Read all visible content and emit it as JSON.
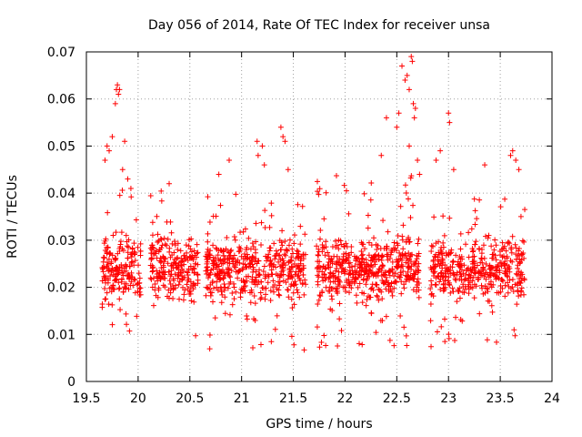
{
  "chart_data": {
    "type": "scatter",
    "title": "Day 056 of 2014, Rate Of TEC Index for receiver unsa",
    "xlabel": "GPS time / hours",
    "ylabel": "ROTI / TECUs",
    "xlim": [
      19.5,
      24
    ],
    "ylim": [
      0,
      0.07
    ],
    "xticks": [
      "19.5",
      "20",
      "20.5",
      "21",
      "21.5",
      "22",
      "22.5",
      "23",
      "23.5",
      "24"
    ],
    "yticks": [
      "0",
      "0.01",
      "0.02",
      "0.03",
      "0.04",
      "0.05",
      "0.06",
      "0.07"
    ],
    "xtick_values": [
      19.5,
      20,
      20.5,
      21,
      21.5,
      22,
      22.5,
      23,
      23.5,
      24
    ],
    "ytick_values": [
      0,
      0.01,
      0.02,
      0.03,
      0.04,
      0.05,
      0.06,
      0.07
    ],
    "grid": true,
    "marker": "plus",
    "color": "#ff0000",
    "series": [
      {
        "name": "ROTI",
        "description": "Dense point cloud, approx. 0.007–0.069 TECU/min; data gaps near 20.05–20.15, 20.55–20.65, 21.65–21.72, 22.75–22.85",
        "clusters": [
          {
            "x": [
              19.65,
              20.03
            ],
            "y": [
              0.01,
              0.042
            ],
            "n": 190
          },
          {
            "x": [
              20.12,
              20.58
            ],
            "y": [
              0.008,
              0.042
            ],
            "n": 230
          },
          {
            "x": [
              20.65,
              21.62
            ],
            "y": [
              0.006,
              0.04
            ],
            "n": 470
          },
          {
            "x": [
              21.72,
              22.72
            ],
            "y": [
              0.007,
              0.044
            ],
            "n": 520
          },
          {
            "x": [
              22.82,
              23.74
            ],
            "y": [
              0.007,
              0.04
            ],
            "n": 430
          }
        ],
        "outliers": [
          [
            19.68,
            0.047
          ],
          [
            19.7,
            0.05
          ],
          [
            19.72,
            0.049
          ],
          [
            19.75,
            0.052
          ],
          [
            19.78,
            0.059
          ],
          [
            19.79,
            0.062
          ],
          [
            19.8,
            0.063
          ],
          [
            19.81,
            0.061
          ],
          [
            19.82,
            0.062
          ],
          [
            19.85,
            0.045
          ],
          [
            19.87,
            0.051
          ],
          [
            19.9,
            0.043
          ],
          [
            19.93,
            0.041
          ],
          [
            20.3,
            0.042
          ],
          [
            20.78,
            0.044
          ],
          [
            20.88,
            0.047
          ],
          [
            21.15,
            0.051
          ],
          [
            21.16,
            0.048
          ],
          [
            21.2,
            0.05
          ],
          [
            21.22,
            0.046
          ],
          [
            21.38,
            0.054
          ],
          [
            21.4,
            0.052
          ],
          [
            21.42,
            0.051
          ],
          [
            21.45,
            0.045
          ],
          [
            22.35,
            0.048
          ],
          [
            22.4,
            0.056
          ],
          [
            22.5,
            0.054
          ],
          [
            22.52,
            0.057
          ],
          [
            22.55,
            0.067
          ],
          [
            22.58,
            0.064
          ],
          [
            22.6,
            0.065
          ],
          [
            22.62,
            0.062
          ],
          [
            22.64,
            0.069
          ],
          [
            22.65,
            0.068
          ],
          [
            22.66,
            0.059
          ],
          [
            22.67,
            0.056
          ],
          [
            22.68,
            0.058
          ],
          [
            22.62,
            0.05
          ],
          [
            22.7,
            0.047
          ],
          [
            22.72,
            0.044
          ],
          [
            22.88,
            0.047
          ],
          [
            22.92,
            0.049
          ],
          [
            23.0,
            0.057
          ],
          [
            23.01,
            0.055
          ],
          [
            23.05,
            0.045
          ],
          [
            23.35,
            0.046
          ],
          [
            23.6,
            0.048
          ],
          [
            23.62,
            0.049
          ],
          [
            23.65,
            0.047
          ],
          [
            23.68,
            0.045
          ]
        ]
      }
    ]
  }
}
